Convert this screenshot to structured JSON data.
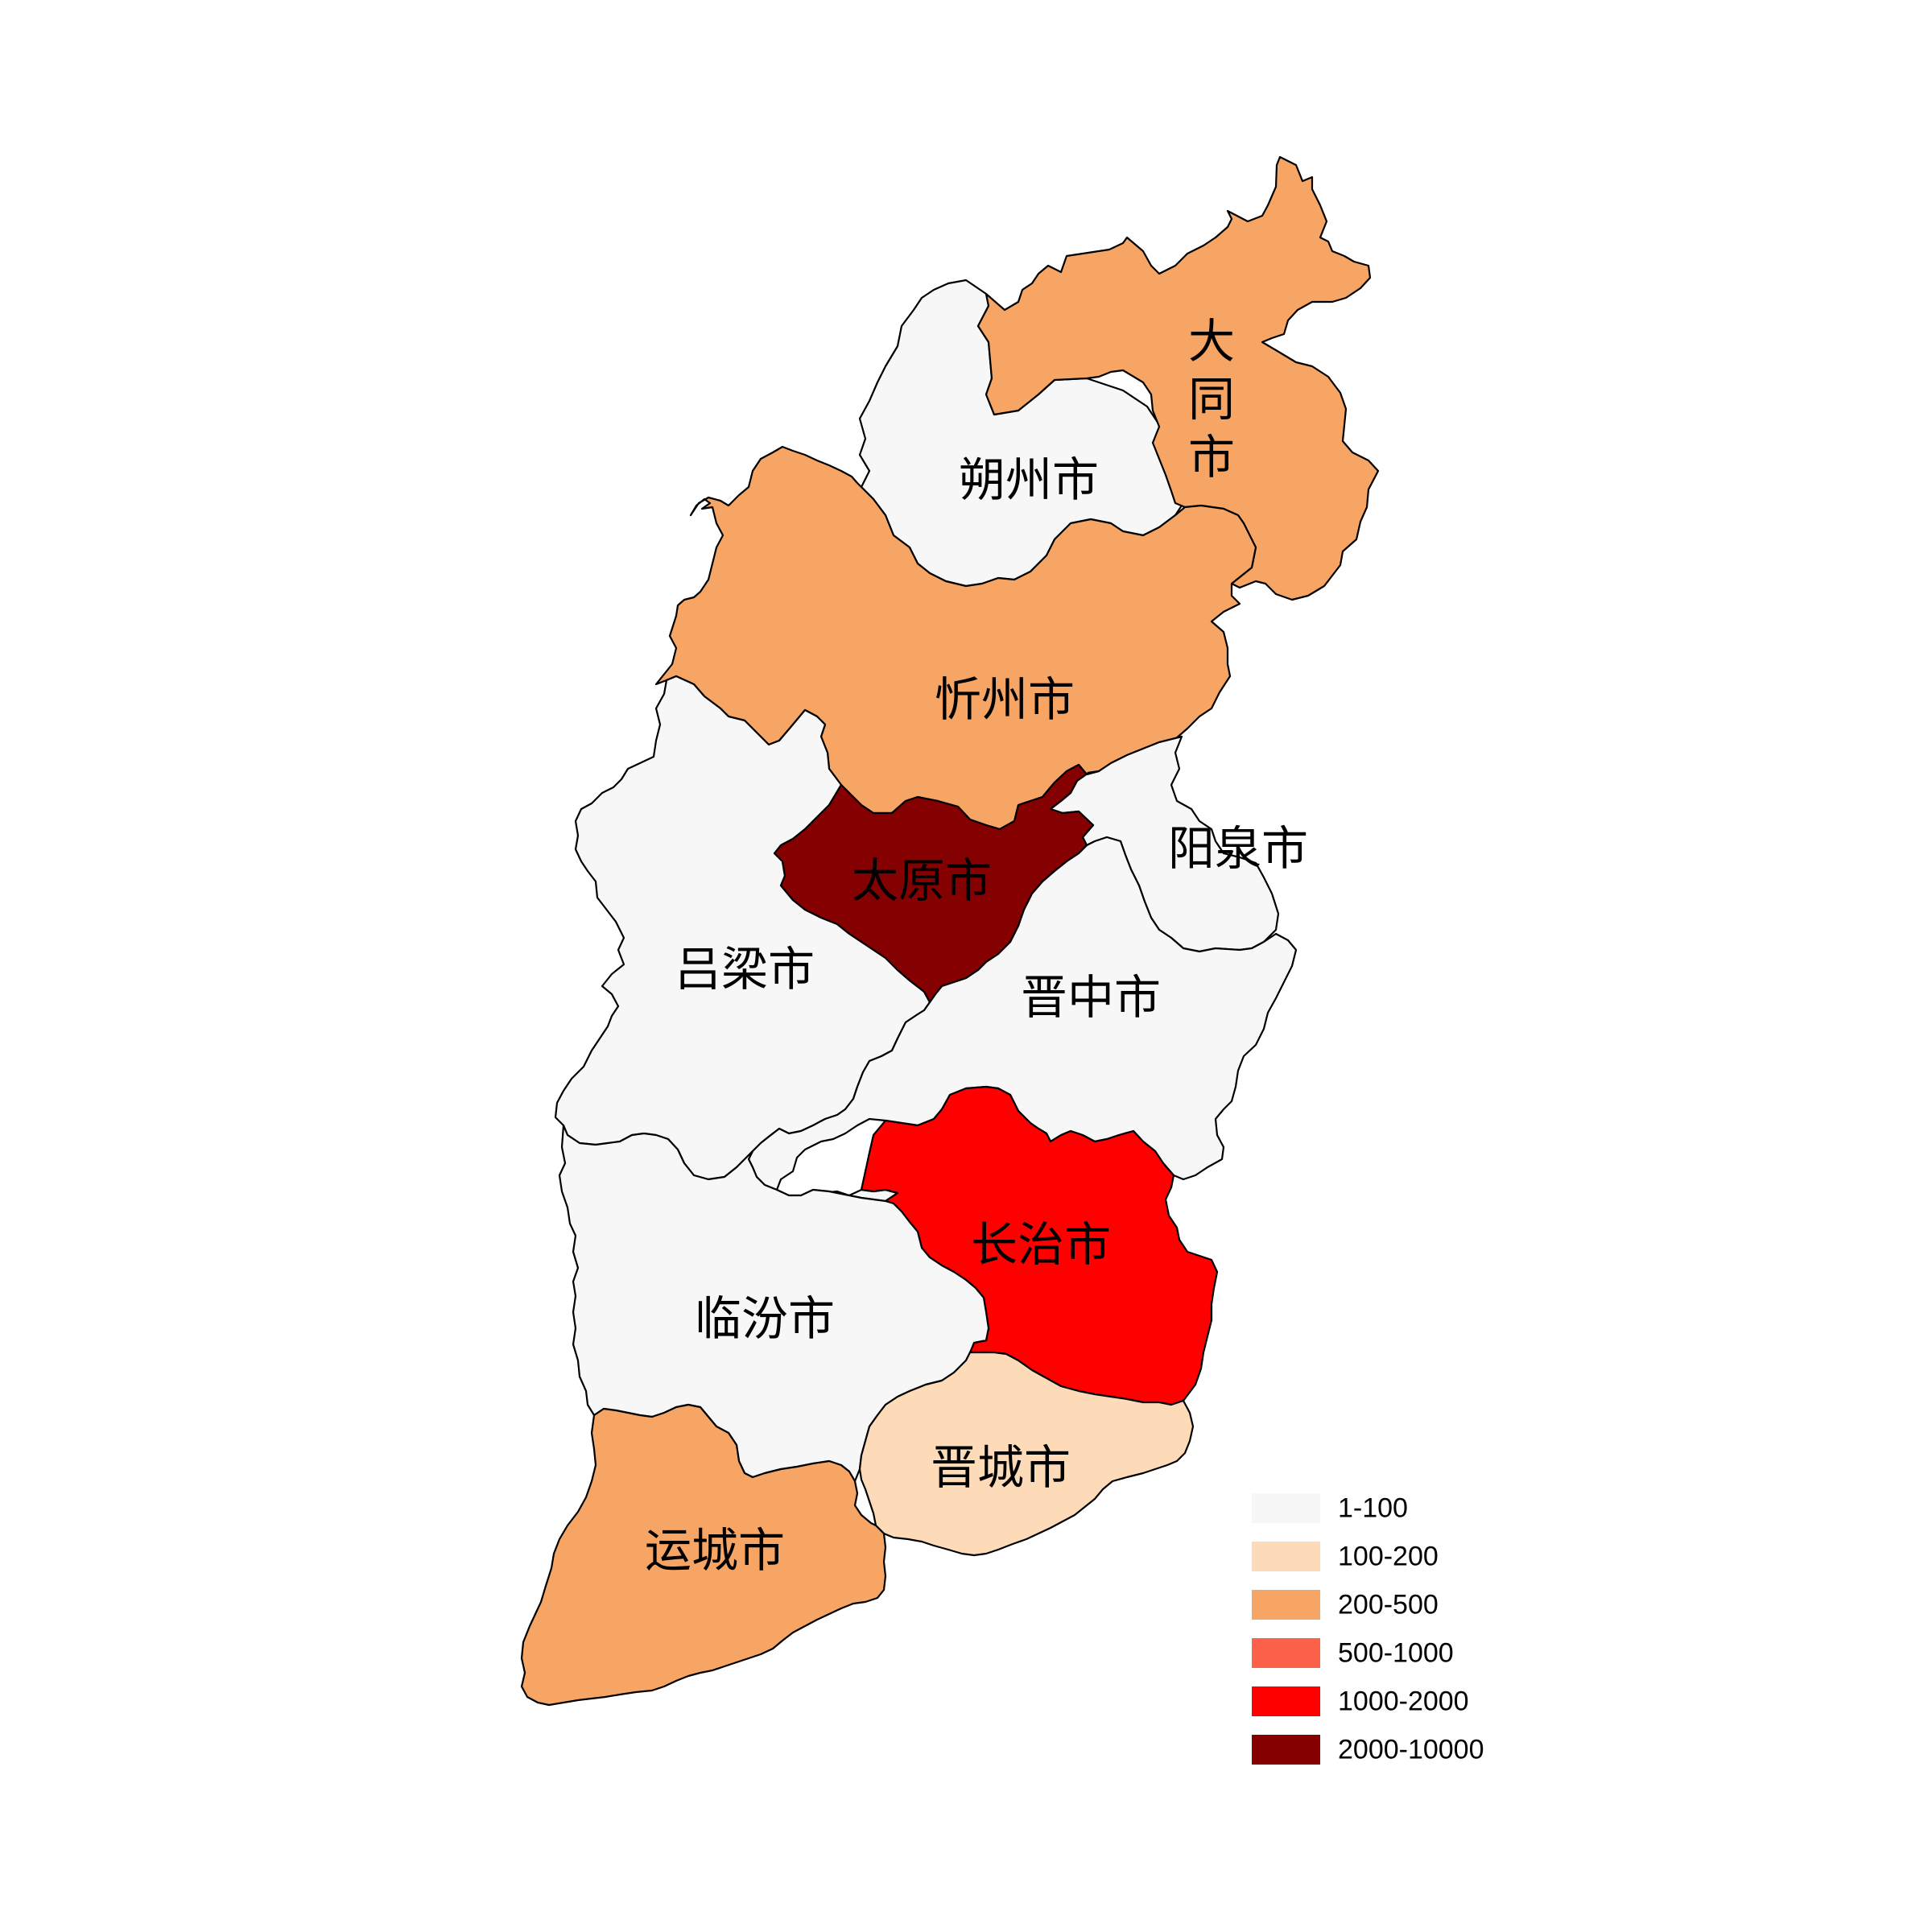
{
  "map": {
    "regions": [
      {
        "id": "datong",
        "name": "大同市",
        "range_index": 2
      },
      {
        "id": "shuozhou",
        "name": "朔州市",
        "range_index": 0
      },
      {
        "id": "xinzhou",
        "name": "忻州市",
        "range_index": 2
      },
      {
        "id": "taiyuan",
        "name": "太原市",
        "range_index": 5
      },
      {
        "id": "yangquan",
        "name": "阳泉市",
        "range_index": 0
      },
      {
        "id": "lvliang",
        "name": "吕梁市",
        "range_index": 0
      },
      {
        "id": "jinzhong",
        "name": "晋中市",
        "range_index": 0
      },
      {
        "id": "changzhi",
        "name": "长治市",
        "range_index": 4
      },
      {
        "id": "linfen",
        "name": "临汾市",
        "range_index": 0
      },
      {
        "id": "jincheng",
        "name": "晋城市",
        "range_index": 1
      },
      {
        "id": "yuncheng",
        "name": "运城市",
        "range_index": 2
      }
    ]
  },
  "legend": {
    "items": [
      {
        "label": "1-100",
        "color": "#f7f7f7"
      },
      {
        "label": "100-200",
        "color": "#fddbb8"
      },
      {
        "label": "200-500",
        "color": "#f6a565"
      },
      {
        "label": "500-1000",
        "color": "#fc6149"
      },
      {
        "label": "1000-2000",
        "color": "#fe0000"
      },
      {
        "label": "2000-10000",
        "color": "#850000"
      }
    ]
  }
}
